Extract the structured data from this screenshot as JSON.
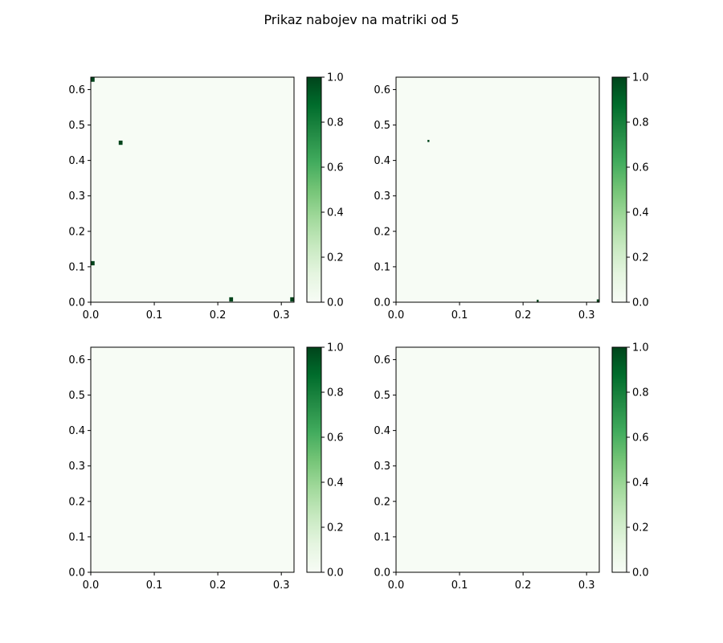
{
  "figure": {
    "title": "Prikaz nabojev na matriki od 5",
    "colormap": "Greens",
    "colormap_colors": [
      "#f7fcf5",
      "#e5f5e0",
      "#c7e9c0",
      "#a1d99b",
      "#74c476",
      "#41ab5d",
      "#238b45",
      "#006d2c",
      "#00441b"
    ]
  },
  "chart_data": [
    {
      "type": "heatmap",
      "xlim": [
        0,
        0.32
      ],
      "ylim": [
        0,
        0.635
      ],
      "x_ticks": [
        "0.0",
        "0.1",
        "0.2",
        "0.3"
      ],
      "y_ticks": [
        "0.0",
        "0.1",
        "0.2",
        "0.3",
        "0.4",
        "0.5",
        "0.6"
      ],
      "colorbar_ticks": [
        "0.0",
        "0.2",
        "0.4",
        "0.6",
        "0.8",
        "1.0"
      ],
      "clim": [
        0,
        1
      ],
      "background_value": 0,
      "charges": [
        {
          "x": 0.003,
          "y": 0.628,
          "w": 0.006,
          "h": 0.012,
          "value": 1
        },
        {
          "x": 0.047,
          "y": 0.45,
          "w": 0.006,
          "h": 0.012,
          "value": 1
        },
        {
          "x": 0.003,
          "y": 0.11,
          "w": 0.006,
          "h": 0.012,
          "value": 1
        },
        {
          "x": 0.221,
          "y": 0.008,
          "w": 0.006,
          "h": 0.012,
          "value": 1
        },
        {
          "x": 0.317,
          "y": 0.008,
          "w": 0.006,
          "h": 0.012,
          "value": 1
        }
      ]
    },
    {
      "type": "heatmap",
      "xlim": [
        0,
        0.32
      ],
      "ylim": [
        0,
        0.635
      ],
      "x_ticks": [
        "0.0",
        "0.1",
        "0.2",
        "0.3"
      ],
      "y_ticks": [
        "0.0",
        "0.1",
        "0.2",
        "0.3",
        "0.4",
        "0.5",
        "0.6"
      ],
      "colorbar_ticks": [
        "0.0",
        "0.2",
        "0.4",
        "0.6",
        "0.8",
        "1.0"
      ],
      "clim": [
        0,
        1
      ],
      "background_value": 0,
      "charges": [
        {
          "x": 0.051,
          "y": 0.455,
          "w": 0.003,
          "h": 0.006,
          "value": 1
        },
        {
          "x": 0.223,
          "y": 0.004,
          "w": 0.003,
          "h": 0.006,
          "value": 1
        },
        {
          "x": 0.318,
          "y": 0.004,
          "w": 0.004,
          "h": 0.008,
          "value": 1
        }
      ]
    },
    {
      "type": "heatmap",
      "xlim": [
        0,
        0.32
      ],
      "ylim": [
        0,
        0.635
      ],
      "x_ticks": [
        "0.0",
        "0.1",
        "0.2",
        "0.3"
      ],
      "y_ticks": [
        "0.0",
        "0.1",
        "0.2",
        "0.3",
        "0.4",
        "0.5",
        "0.6"
      ],
      "colorbar_ticks": [
        "0.0",
        "0.2",
        "0.4",
        "0.6",
        "0.8",
        "1.0"
      ],
      "clim": [
        0,
        1
      ],
      "background_value": 0,
      "charges": []
    },
    {
      "type": "heatmap",
      "xlim": [
        0,
        0.32
      ],
      "ylim": [
        0,
        0.635
      ],
      "x_ticks": [
        "0.0",
        "0.1",
        "0.2",
        "0.3"
      ],
      "y_ticks": [
        "0.0",
        "0.1",
        "0.2",
        "0.3",
        "0.4",
        "0.5",
        "0.6"
      ],
      "colorbar_ticks": [
        "0.0",
        "0.2",
        "0.4",
        "0.6",
        "0.8",
        "1.0"
      ],
      "clim": [
        0,
        1
      ],
      "background_value": 0,
      "charges": []
    }
  ]
}
